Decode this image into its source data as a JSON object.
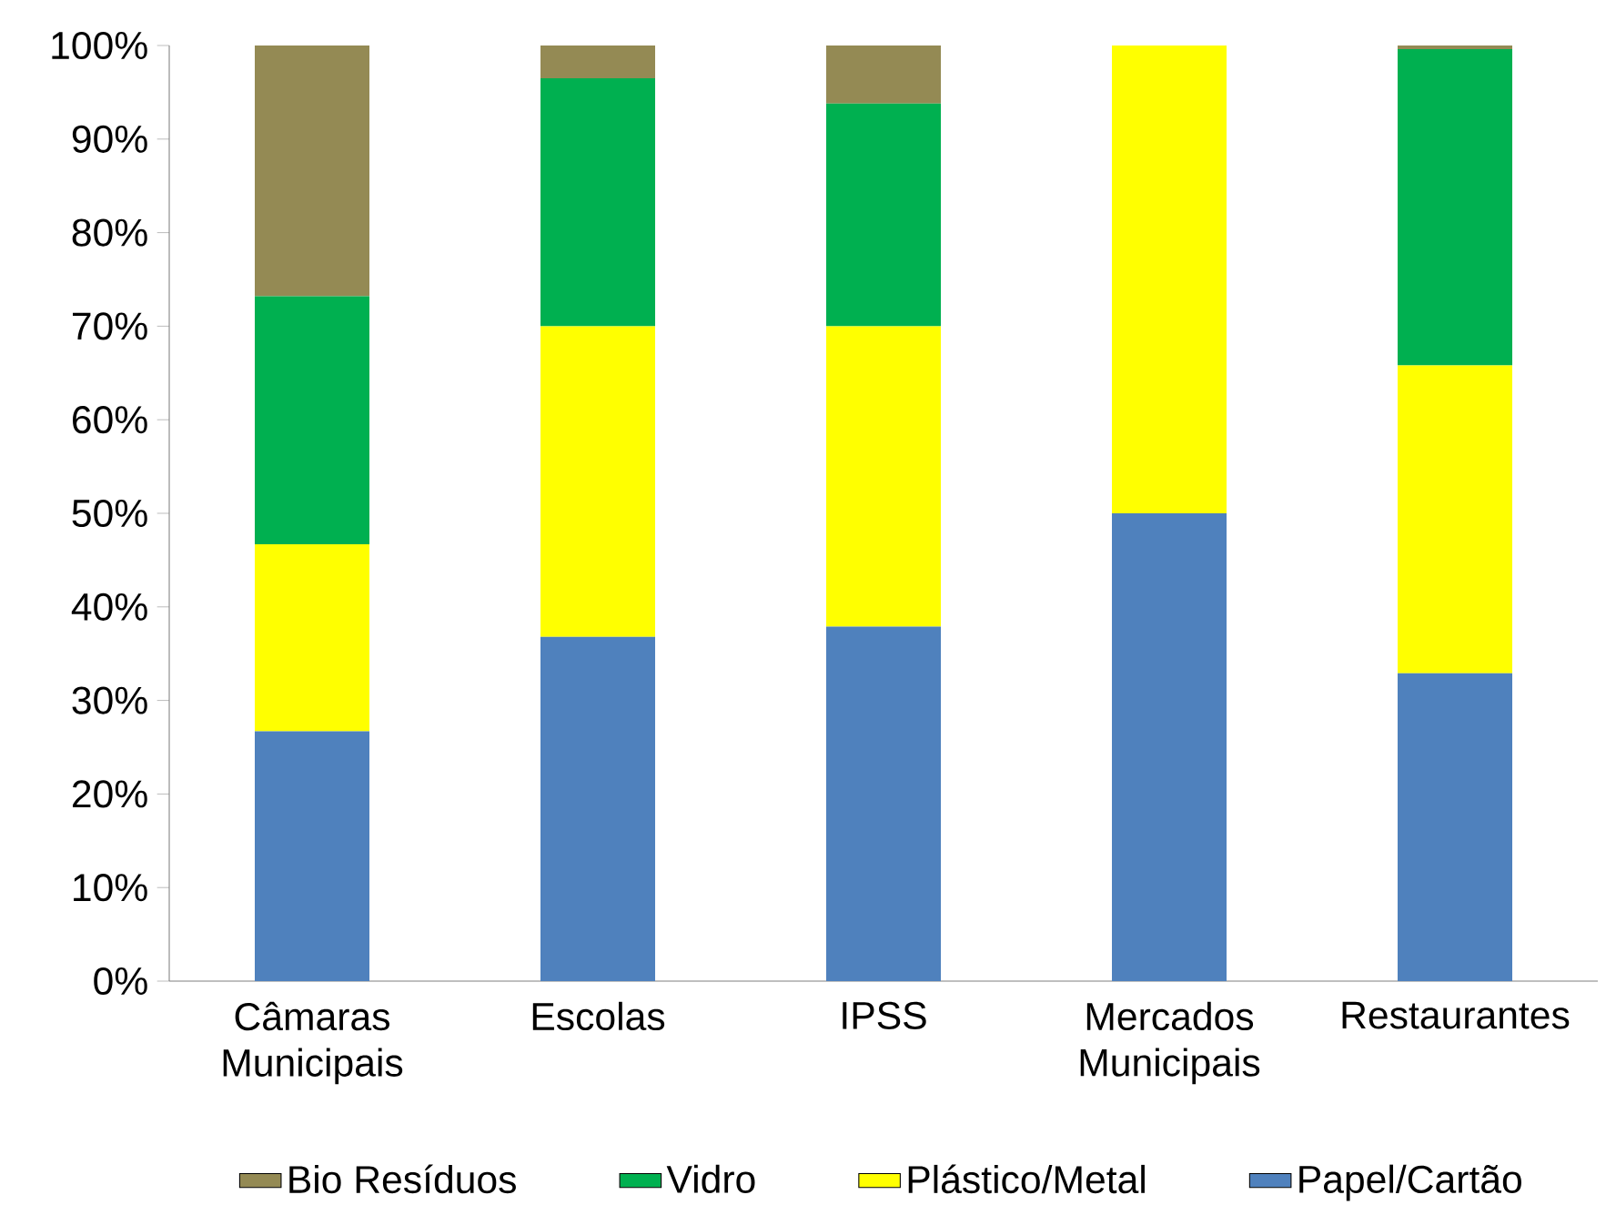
{
  "chart_data": {
    "type": "bar",
    "stacked": true,
    "categories": [
      "Câmaras Municipais",
      "Escolas",
      "IPSS",
      "Mercados Municipais",
      "Restaurantes"
    ],
    "series": [
      {
        "name": "Papel/Cartão",
        "color": "#4f81bd",
        "values": [
          26.7,
          36.8,
          37.9,
          50,
          32.9
        ]
      },
      {
        "name": "Plástico/Metal",
        "color": "#ffff00",
        "values": [
          20,
          33.2,
          32.1,
          50,
          32.9
        ]
      },
      {
        "name": "Vidro",
        "color": "#00b050",
        "values": [
          26.5,
          26.5,
          23.8,
          0,
          33.8
        ]
      },
      {
        "name": "Bio Resíduos",
        "color": "#948a54",
        "values": [
          26.8,
          3.5,
          6.2,
          0,
          0.4
        ]
      }
    ],
    "ylim": [
      0,
      100
    ],
    "yticks": [
      {
        "value": 0,
        "label": "0%"
      },
      {
        "value": 10,
        "label": "10%"
      },
      {
        "value": 20,
        "label": "20%"
      },
      {
        "value": 30,
        "label": "30%"
      },
      {
        "value": 40,
        "label": "40%"
      },
      {
        "value": 50,
        "label": "50%"
      },
      {
        "value": 60,
        "label": "60%"
      },
      {
        "value": 70,
        "label": "70%"
      },
      {
        "value": 80,
        "label": "80%"
      },
      {
        "value": 90,
        "label": "90%"
      },
      {
        "value": 100,
        "label": "100%"
      }
    ],
    "grid": false,
    "legend": "bottom"
  }
}
